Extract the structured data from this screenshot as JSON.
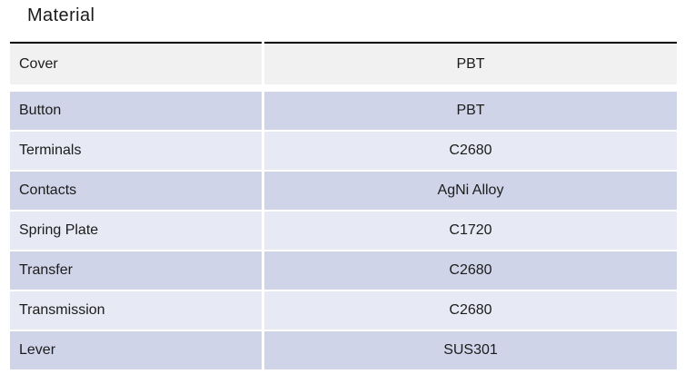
{
  "page": {
    "title": "Material"
  },
  "table": {
    "rows": [
      {
        "label": "Cover",
        "value": "PBT"
      },
      {
        "label": "Button",
        "value": "PBT"
      },
      {
        "label": "Terminals",
        "value": "C2680"
      },
      {
        "label": "Contacts",
        "value": "AgNi Alloy"
      },
      {
        "label": "Spring Plate",
        "value": "C1720"
      },
      {
        "label": "Transfer",
        "value": "C2680"
      },
      {
        "label": "Transmission",
        "value": "C2680"
      },
      {
        "label": "Lever",
        "value": "SUS301"
      }
    ],
    "colors": {
      "first_row_bg": "#f1f1f2",
      "band_dark": "#cfd4e8",
      "band_light": "#e7e9f5",
      "top_border": "#000000",
      "text": "#1c1c1c"
    }
  }
}
